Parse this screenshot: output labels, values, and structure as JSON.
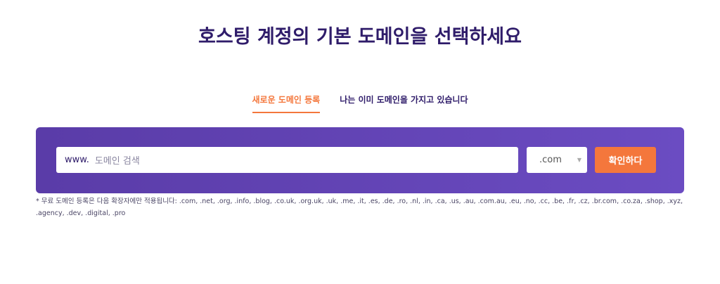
{
  "title": "호스팅 계정의 기본 도메인을 선택하세요",
  "tabs": [
    {
      "label": "새로운 도메인 등록",
      "active": true
    },
    {
      "label": "나는 이미 도메인을 가지고 있습니다",
      "active": false
    }
  ],
  "search": {
    "prefix": "www.",
    "placeholder": "도메인 검색"
  },
  "tld_select": {
    "value": ".com"
  },
  "submit_label": "확인하다",
  "note": "* 무료 도메인 등록은 다음 확장자에만 적용됩니다: .com, .net, .org, .info, .blog, .co.uk, .org.uk, .uk, .me, .it, .es, .de, .ro, .nl, .in, .ca, .us, .au, .com.au, .eu, .no, .cc, .be, .fr, .cz, .br.com, .co.za, .shop, .xyz, .agency, .dev, .digital, .pro",
  "colors": {
    "accent": "#f4773c",
    "panel": "#5a3ca8",
    "title": "#2f1c6a"
  }
}
